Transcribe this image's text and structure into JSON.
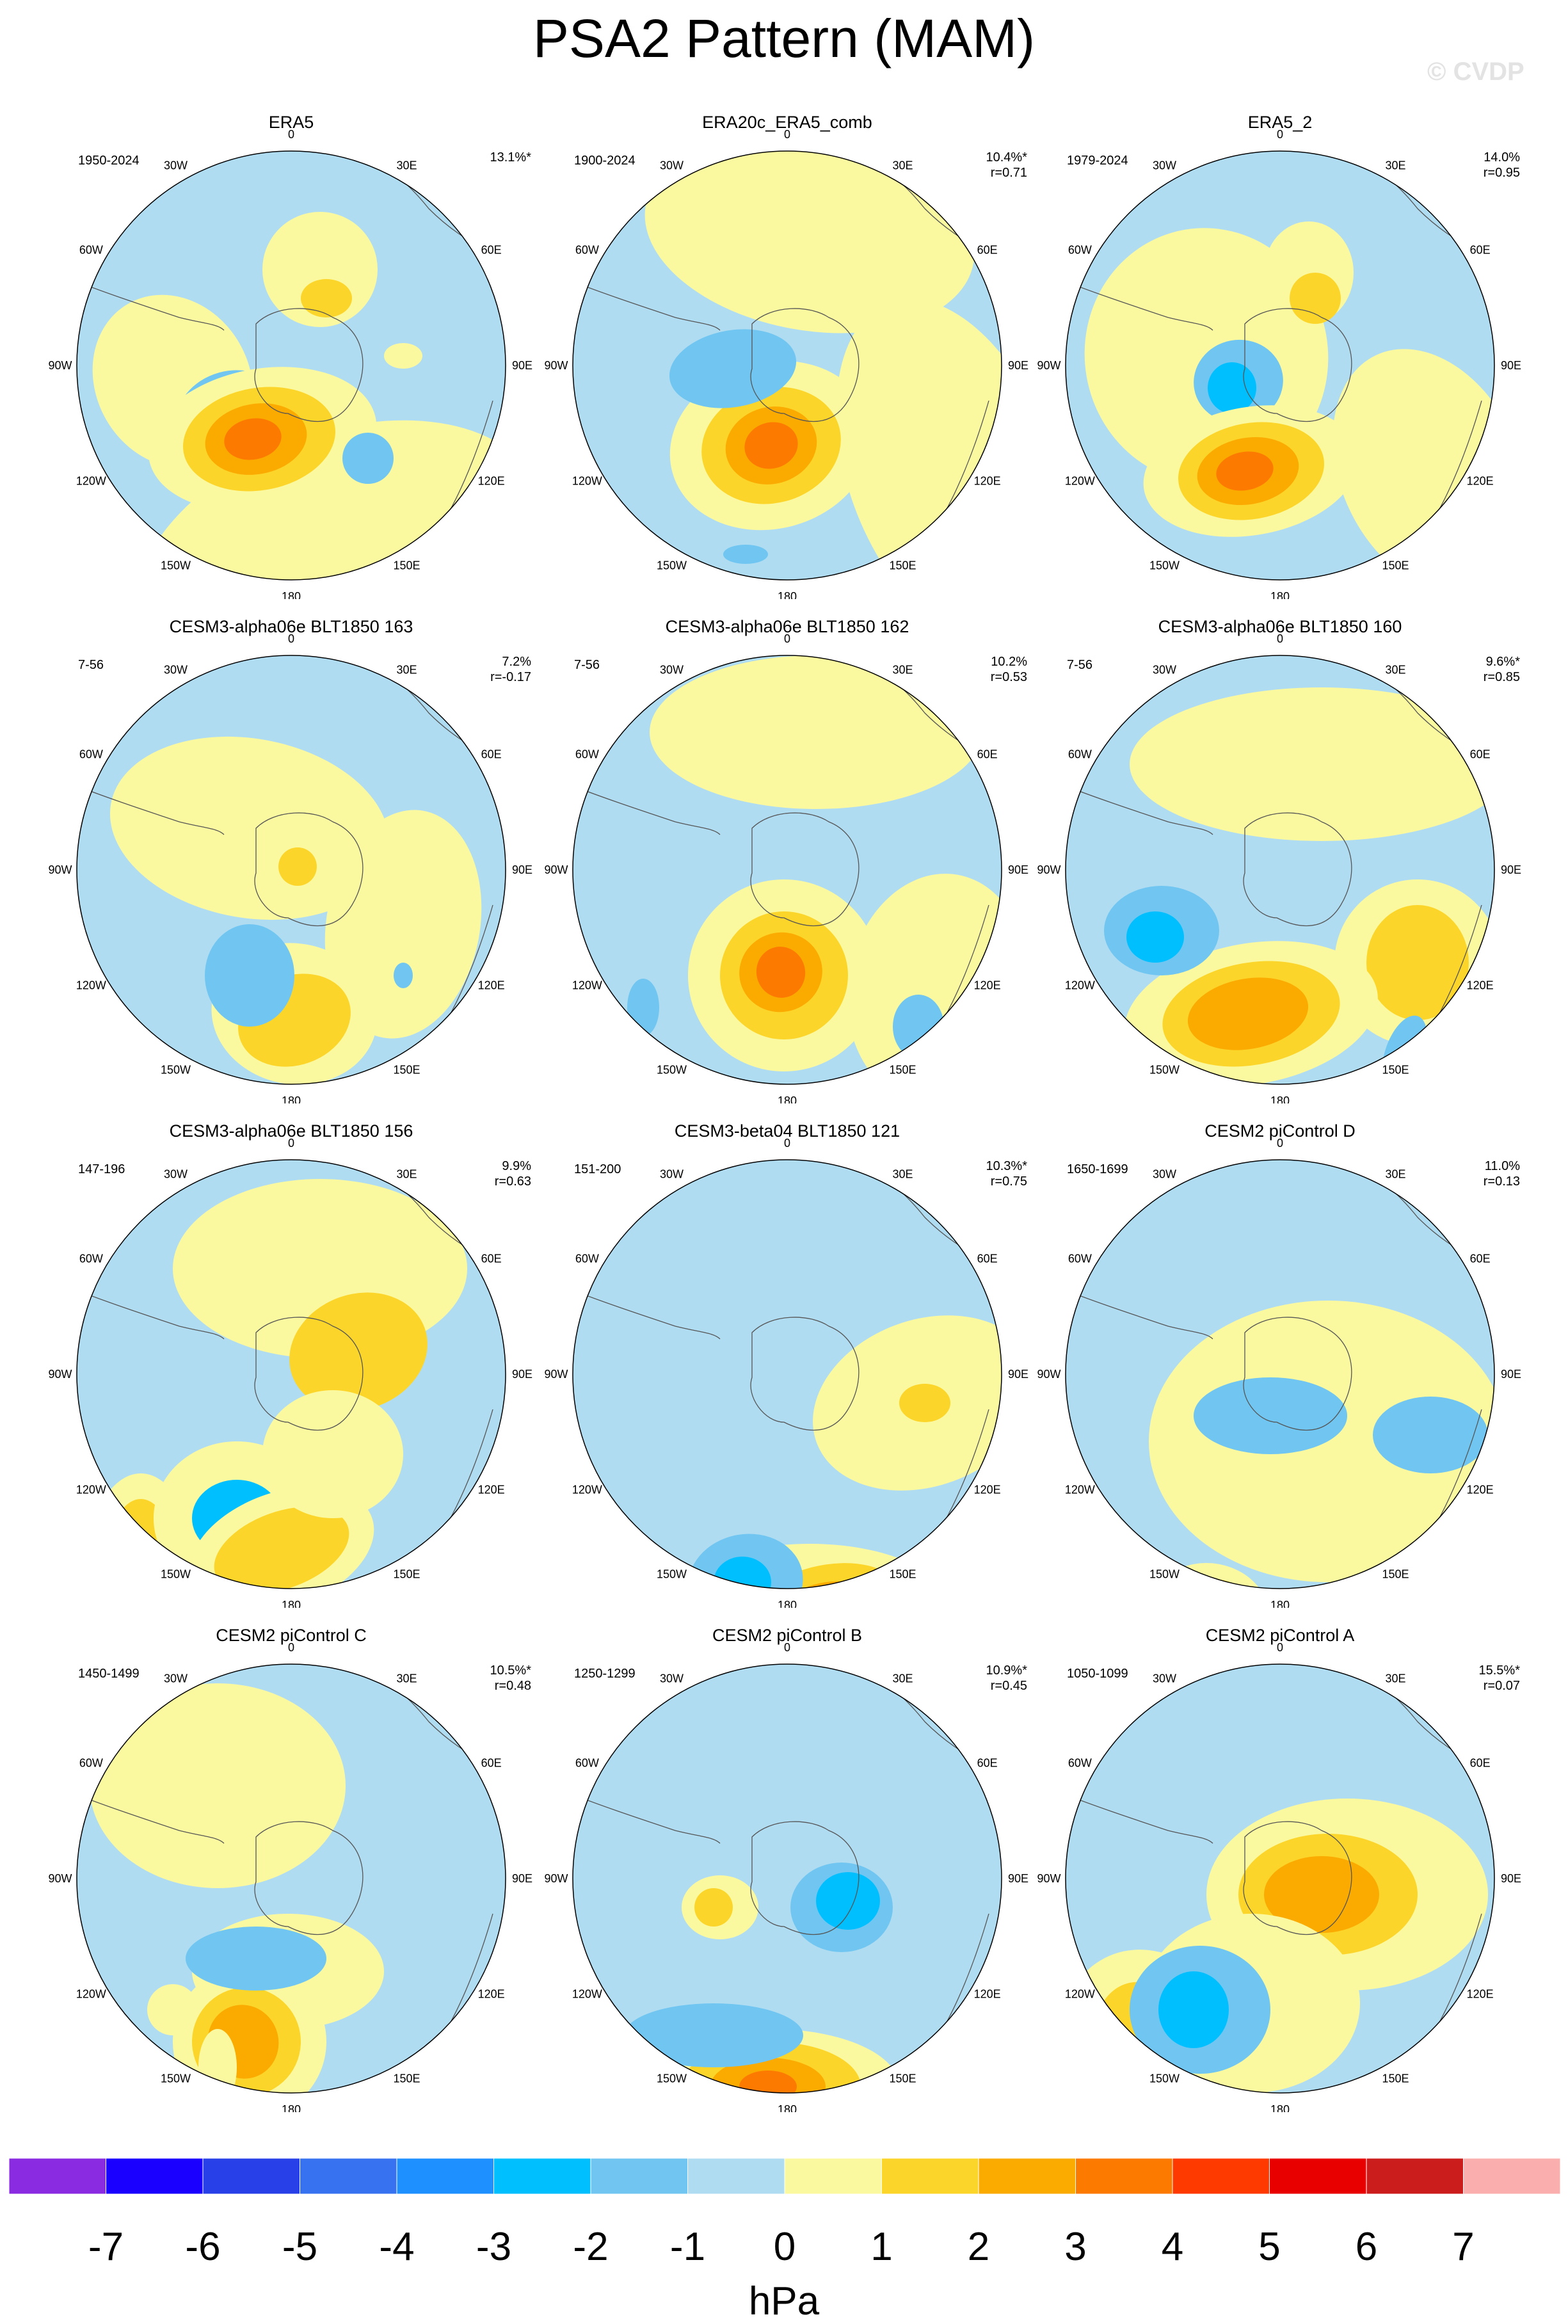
{
  "title": "PSA2 Pattern (MAM)",
  "watermark": "© CVDP",
  "units": "hPa",
  "lon_labels": [
    "0",
    "30E",
    "60E",
    "90E",
    "120E",
    "150E",
    "180",
    "150W",
    "120W",
    "90W",
    "60W",
    "30W"
  ],
  "colorbar": {
    "colors": [
      "#8a2be2",
      "#1a00ff",
      "#2840e8",
      "#3773f0",
      "#1e90ff",
      "#00bfff",
      "#70c6f1",
      "#b0dcf2",
      "#fbf9a0",
      "#fcd52a",
      "#fbaa00",
      "#fc7a00",
      "#ff3a00",
      "#e80000",
      "#cc1d1d",
      "#fbaeae"
    ],
    "labels": [
      "-7",
      "-6",
      "-5",
      "-4",
      "-3",
      "-2",
      "-1",
      "0",
      "1",
      "2",
      "3",
      "4",
      "5",
      "6",
      "7"
    ]
  },
  "panels": [
    {
      "title": "ERA5",
      "period": "1950-2024",
      "pct": "13.1%*",
      "r": ""
    },
    {
      "title": "ERA20c_ERA5_comb",
      "period": "1900-2024",
      "pct": "10.4%*",
      "r": "r=0.71"
    },
    {
      "title": "ERA5_2",
      "period": "1979-2024",
      "pct": "14.0%",
      "r": "r=0.95"
    },
    {
      "title": "CESM3-alpha06e BLT1850 163",
      "period": "7-56",
      "pct": "7.2%",
      "r": "r=-0.17"
    },
    {
      "title": "CESM3-alpha06e BLT1850 162",
      "period": "7-56",
      "pct": "10.2%",
      "r": "r=0.53"
    },
    {
      "title": "CESM3-alpha06e BLT1850 160",
      "period": "7-56",
      "pct": "9.6%*",
      "r": "r=0.85"
    },
    {
      "title": "CESM3-alpha06e BLT1850 156",
      "period": "147-196",
      "pct": "9.9%",
      "r": "r=0.63"
    },
    {
      "title": "CESM3-beta04 BLT1850 121",
      "period": "151-200",
      "pct": "10.3%*",
      "r": "r=0.75"
    },
    {
      "title": "CESM2 piControl D",
      "period": "1650-1699",
      "pct": "11.0%",
      "r": "r=0.13"
    },
    {
      "title": "CESM2 piControl C",
      "period": "1450-1499",
      "pct": "10.5%*",
      "r": "r=0.48"
    },
    {
      "title": "CESM2 piControl B",
      "period": "1250-1299",
      "pct": "10.9%*",
      "r": "r=0.45"
    },
    {
      "title": "CESM2 piControl A",
      "period": "1050-1099",
      "pct": "15.5%*",
      "r": "r=0.07"
    }
  ]
}
